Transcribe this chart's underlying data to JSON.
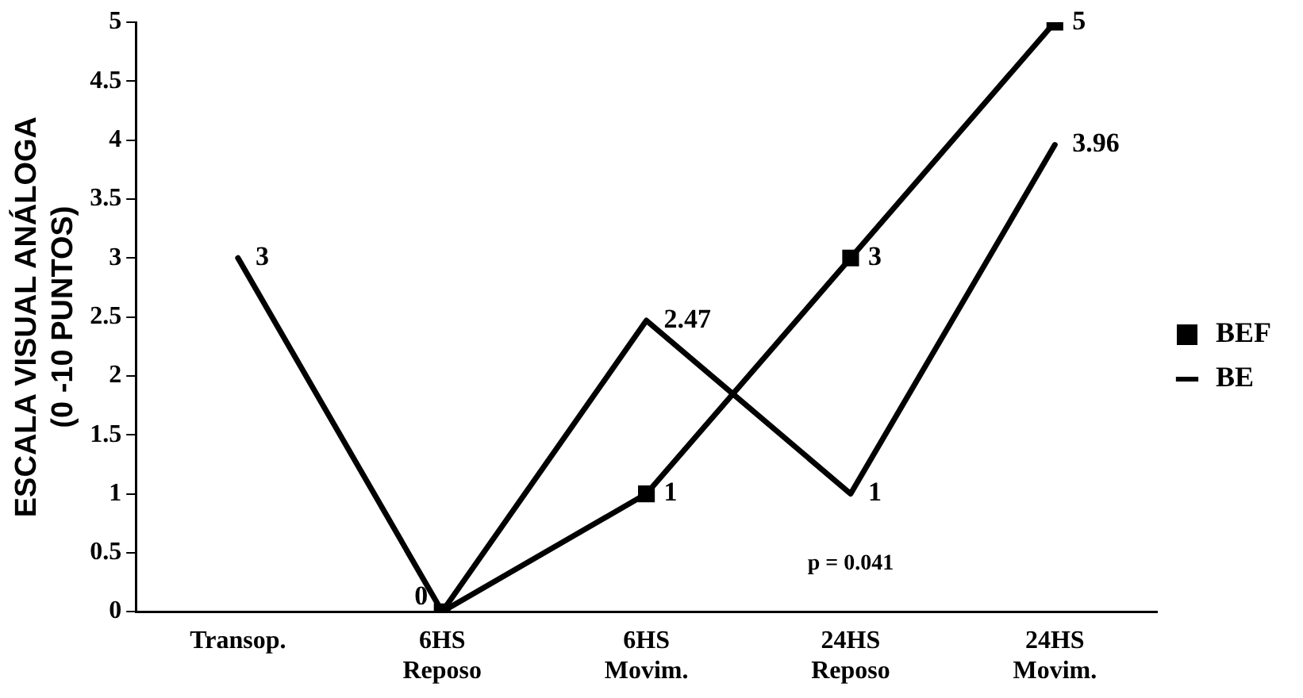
{
  "chart_data": {
    "type": "line",
    "ylabel": "ESCALA VISUAL ANÁLOGA\n(0 -10 PUNTOS)",
    "categories": [
      "Transop.",
      "6HS\nReposo",
      "6HS\nMovim.",
      "24HS\nReposo",
      "24HS\nMovim."
    ],
    "series": [
      {
        "name": "BEF",
        "color": "#000000",
        "marker": "square",
        "line_style": "solid",
        "values": [
          null,
          0,
          1,
          3,
          5
        ],
        "value_labels": [
          null,
          null,
          "1",
          "3",
          "5"
        ]
      },
      {
        "name": "BE",
        "color": "#000000",
        "marker": "none",
        "line_style": "solid",
        "values": [
          3,
          0,
          2.47,
          1,
          3.96
        ],
        "value_labels": [
          "3",
          "0",
          "2.47",
          "1",
          "3.96"
        ]
      }
    ],
    "ylim": [
      0,
      5
    ],
    "yticks": [
      0,
      0.5,
      1,
      1.5,
      2,
      2.5,
      3,
      3.5,
      4,
      4.5,
      5
    ],
    "grid": false,
    "legend": "right",
    "annotations": [
      "p = 0.041"
    ]
  }
}
